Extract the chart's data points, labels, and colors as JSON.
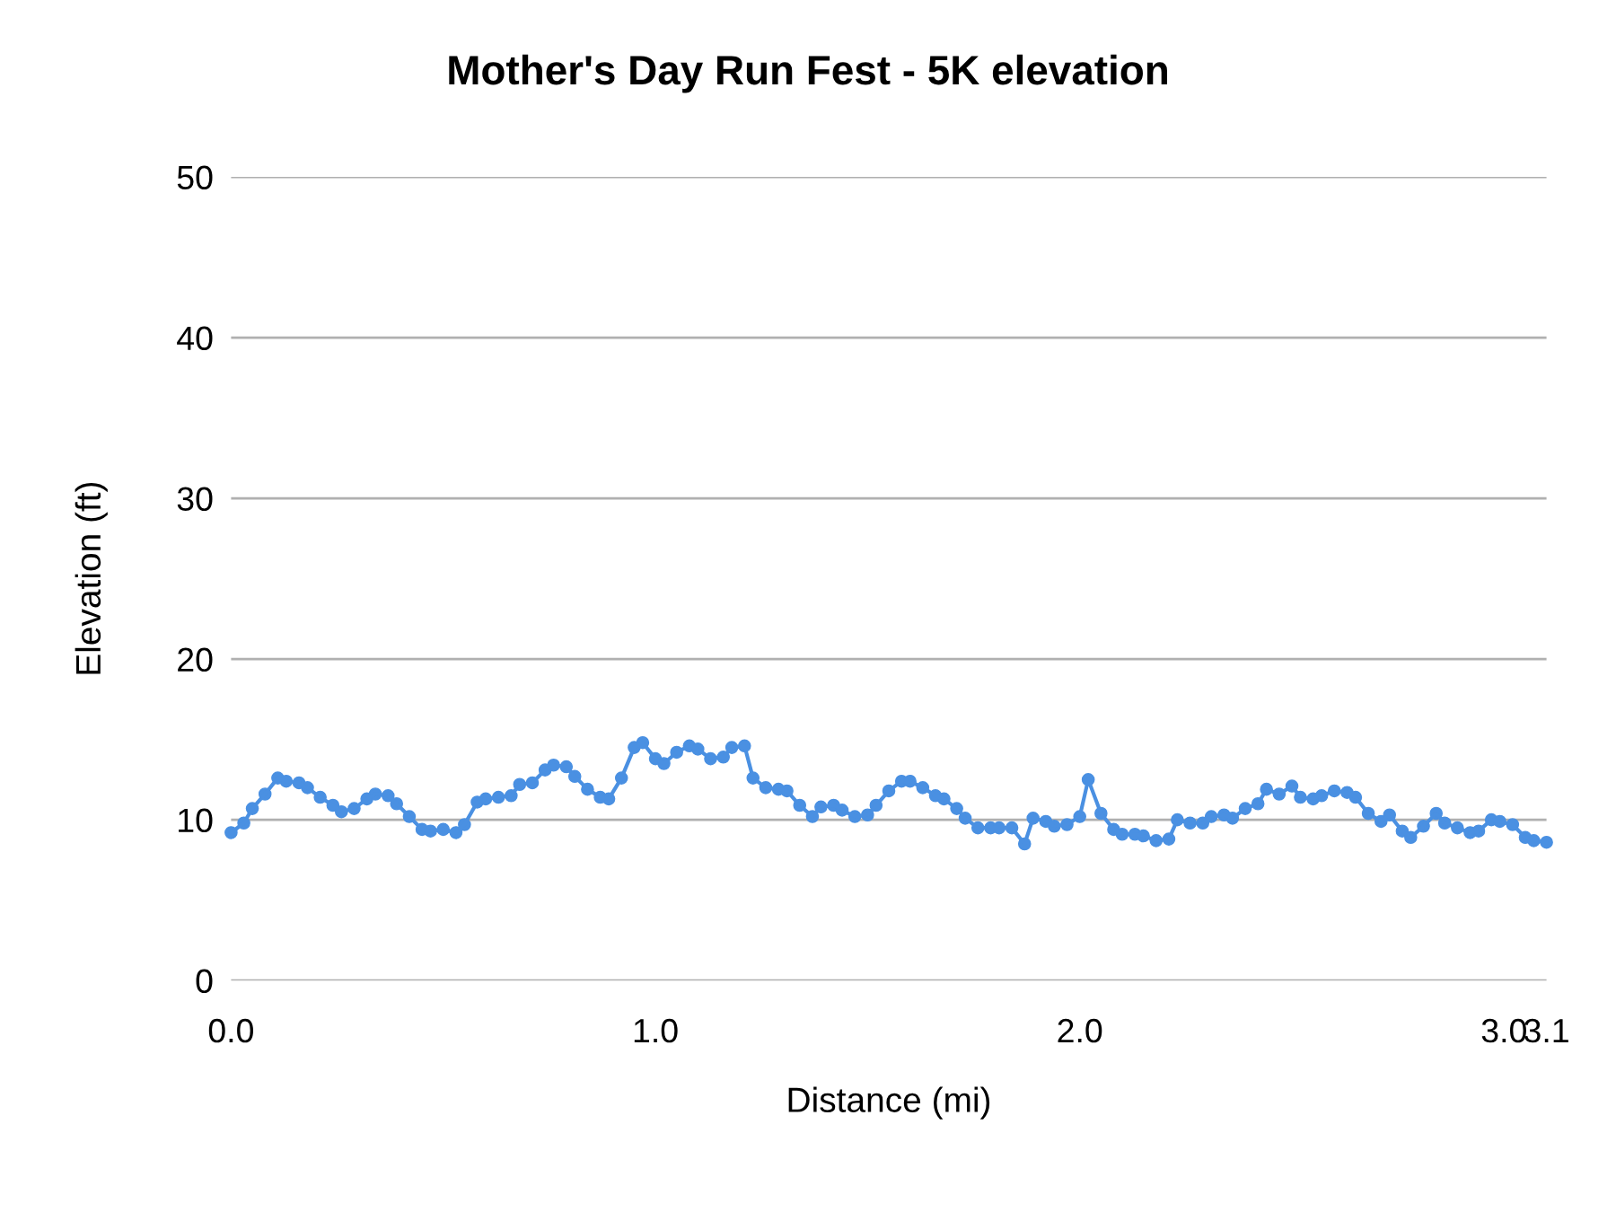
{
  "chart_data": {
    "type": "line",
    "title": "Mother's Day Run Fest - 5K elevation",
    "xlabel": "Distance (mi)",
    "ylabel": "Elevation (ft)",
    "x": [
      0,
      0.03,
      0.05,
      0.08,
      0.11,
      0.13,
      0.16,
      0.18,
      0.21,
      0.24,
      0.26,
      0.29,
      0.32,
      0.34,
      0.37,
      0.39,
      0.42,
      0.45,
      0.47,
      0.5,
      0.53,
      0.55,
      0.58,
      0.6,
      0.63,
      0.66,
      0.68,
      0.71,
      0.74,
      0.76,
      0.79,
      0.81,
      0.84,
      0.87,
      0.89,
      0.92,
      0.95,
      0.97,
      1.0,
      1.02,
      1.05,
      1.08,
      1.1,
      1.13,
      1.16,
      1.18,
      1.21,
      1.23,
      1.26,
      1.29,
      1.31,
      1.34,
      1.37,
      1.39,
      1.42,
      1.44,
      1.47,
      1.5,
      1.52,
      1.55,
      1.58,
      1.6,
      1.63,
      1.66,
      1.68,
      1.71,
      1.73,
      1.76,
      1.79,
      1.81,
      1.84,
      1.87,
      1.89,
      1.92,
      1.94,
      1.97,
      2.0,
      2.02,
      2.05,
      2.08,
      2.1,
      2.13,
      2.15,
      2.18,
      2.21,
      2.23,
      2.26,
      2.29,
      2.31,
      2.34,
      2.36,
      2.39,
      2.42,
      2.44,
      2.47,
      2.5,
      2.52,
      2.55,
      2.57,
      2.6,
      2.63,
      2.65,
      2.68,
      2.71,
      2.73,
      2.76,
      2.78,
      2.81,
      2.84,
      2.86,
      2.89,
      2.92,
      2.94,
      2.97,
      2.99,
      3.02,
      3.05,
      3.07,
      3.1
    ],
    "series": [
      {
        "color": "#4a90e2",
        "values": [
          9.2,
          9.8,
          10.7,
          11.6,
          12.6,
          12.4,
          12.3,
          12.0,
          11.4,
          10.9,
          10.5,
          10.7,
          11.3,
          11.6,
          11.5,
          11.0,
          10.2,
          9.4,
          9.3,
          9.4,
          9.2,
          9.7,
          11.1,
          11.3,
          11.4,
          11.5,
          12.2,
          12.3,
          13.1,
          13.4,
          13.3,
          12.7,
          11.9,
          11.4,
          11.3,
          12.6,
          14.5,
          14.8,
          13.8,
          13.5,
          14.2,
          14.6,
          14.4,
          13.8,
          13.9,
          14.5,
          14.6,
          12.6,
          12.0,
          11.9,
          11.8,
          10.9,
          10.2,
          10.8,
          10.9,
          10.6,
          10.2,
          10.3,
          10.9,
          11.8,
          12.4,
          12.4,
          12.0,
          11.5,
          11.3,
          10.7,
          10.1,
          9.5,
          9.5,
          9.5,
          9.5,
          8.5,
          10.1,
          9.9,
          9.6,
          9.7,
          10.2,
          12.5,
          10.4,
          9.4,
          9.1,
          9.1,
          9.0,
          8.7,
          8.8,
          10.0,
          9.8,
          9.8,
          10.2,
          10.3,
          10.1,
          10.7,
          11.0,
          11.9,
          11.6,
          12.1,
          11.4,
          11.3,
          11.5,
          11.8,
          11.7,
          11.4,
          10.4,
          9.9,
          10.3,
          9.3,
          8.9,
          9.6,
          10.4,
          9.8,
          9.5,
          9.2,
          9.3,
          10.0,
          9.9,
          9.7,
          8.9,
          8.7,
          8.6
        ]
      }
    ],
    "xlim": [
      0,
      3.1
    ],
    "xticks": [
      {
        "value": 0,
        "label": "0.0"
      },
      {
        "value": 1,
        "label": "1.0"
      },
      {
        "value": 2,
        "label": "2.0"
      },
      {
        "value": 3,
        "label": "3.0"
      },
      3.1
    ],
    "ylim": [
      0,
      50
    ],
    "yticks": [
      0,
      10,
      20,
      30,
      40,
      50
    ],
    "grid": "y",
    "marker": "circle",
    "line_style": "solid",
    "legend": false
  }
}
